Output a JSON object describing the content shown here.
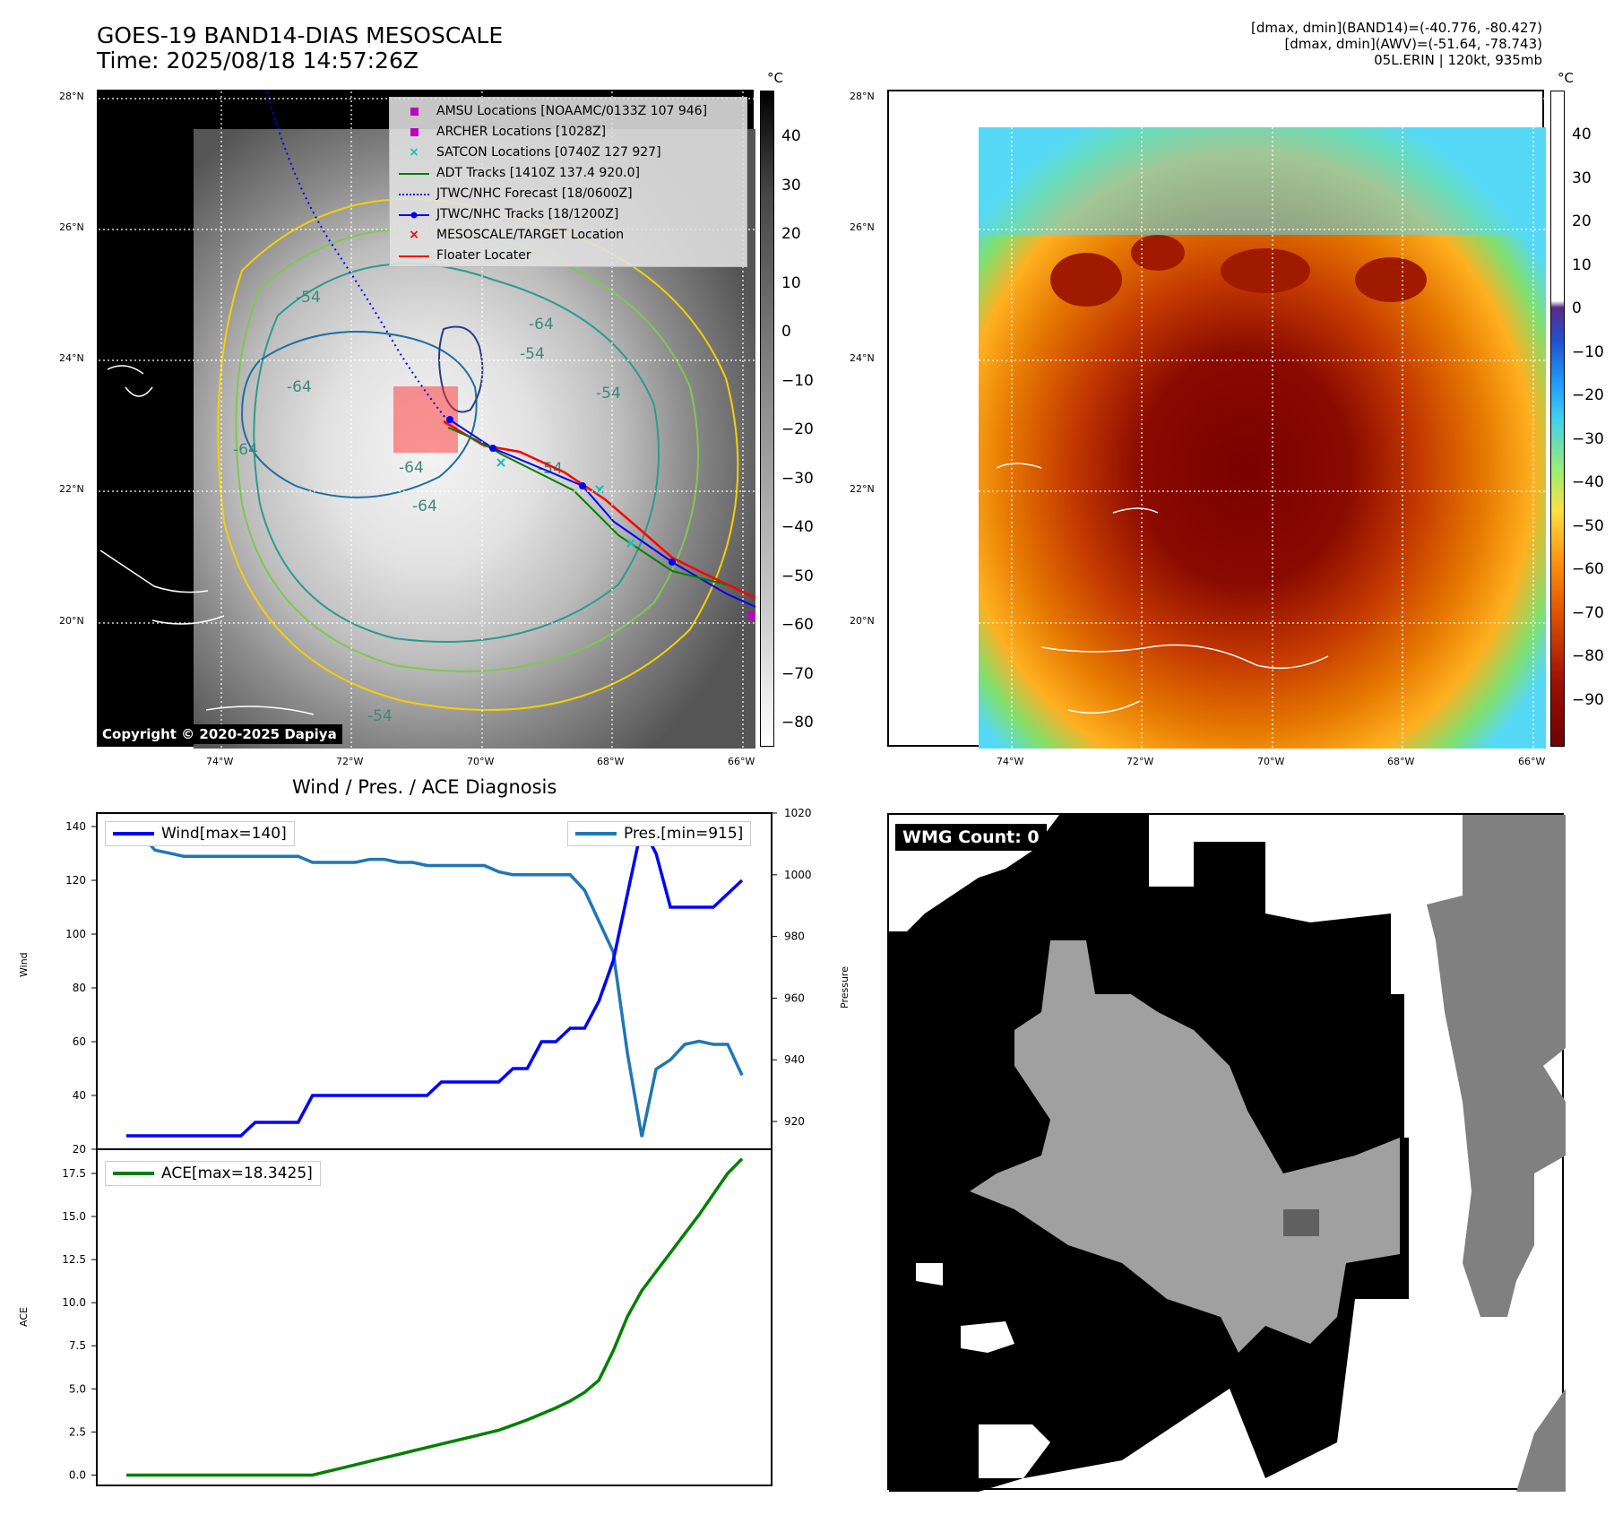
{
  "header": {
    "title_line1": "GOES-19 BAND14-DIAS MESOSCALE",
    "title_line2": "Time: 2025/08/18 14:57:26Z",
    "right_line1": "[dmax, dmin](BAND14)=(-40.776, -80.427)",
    "right_line2": "[dmax, dmin](AWV)=(-51.64, -78.743)",
    "right_line3": "05L.ERIN | 120kt, 935mb"
  },
  "map_left": {
    "lat_labels": [
      "28°N",
      "26°N",
      "24°N",
      "22°N",
      "20°N"
    ],
    "lon_labels": [
      "74°W",
      "72°W",
      "70°W",
      "68°W",
      "66°W"
    ],
    "copyright": "Copyright © 2020-2025 Dapiya",
    "contour_labels": [
      "-64",
      "-54",
      "-64",
      "-54",
      "-64",
      "-54",
      "-64",
      "-54",
      "-54",
      "-64"
    ],
    "legend": [
      {
        "label": "AMSU Locations [NOAAMC/0133Z 107 946]",
        "color": "#c000c0"
      },
      {
        "label": "ARCHER Locations [1028Z]",
        "color": "#c000c0"
      },
      {
        "label": "SATCON Locations [0740Z 127 927]",
        "color": "#17bfbf"
      },
      {
        "label": "ADT Tracks [1410Z 137.4 920.0]",
        "color": "#008000"
      },
      {
        "label": "JTWC/NHC Forecast [18/0600Z]",
        "color": "#0000ff"
      },
      {
        "label": "JTWC/NHC Tracks [18/1200Z]",
        "color": "#0000ff"
      },
      {
        "label": "MESOSCALE/TARGET Location",
        "color": "#ff0000"
      },
      {
        "label": "Floater Locater",
        "color": "#ff0000"
      }
    ],
    "cbar_unit": "°C",
    "cbar_ticks": [
      "40",
      "30",
      "20",
      "10",
      "0",
      "−10",
      "−20",
      "−30",
      "−40",
      "−50",
      "−60",
      "−70",
      "−80"
    ]
  },
  "map_right": {
    "lat_labels": [
      "26°N",
      "24°N",
      "22°N",
      "20°N",
      "28°N"
    ],
    "lon_labels": [
      "74°W",
      "72°W",
      "70°W",
      "68°W",
      "66°W"
    ],
    "cbar_unit": "°C",
    "cbar_ticks": [
      "40",
      "30",
      "20",
      "10",
      "0",
      "−10",
      "−20",
      "−30",
      "−40",
      "−50",
      "−60",
      "−70",
      "−80",
      "−90"
    ]
  },
  "diag": {
    "title": "Wind / Pres. / ACE Diagnosis",
    "wind_legend": "Wind[max=140]",
    "pres_legend": "Pres.[min=915]",
    "ace_legend": "ACE[max=18.3425]",
    "wind_ylabel": "Wind",
    "pres_ylabel": "Pressure",
    "ace_ylabel": "ACE"
  },
  "wmg": {
    "label": "WMG Count: 0"
  },
  "chart_data": [
    {
      "type": "line",
      "title": "Wind / Pres. / ACE Diagnosis",
      "ylabel": "Wind",
      "ylim": [
        20,
        145
      ],
      "yticks": [
        20,
        40,
        60,
        80,
        100,
        120,
        140
      ],
      "series": [
        {
          "name": "Wind[max=140]",
          "color": "#0000ff",
          "values": [
            25,
            25,
            25,
            25,
            25,
            25,
            25,
            25,
            25,
            30,
            30,
            30,
            30,
            40,
            40,
            40,
            40,
            40,
            40,
            40,
            40,
            40,
            45,
            45,
            45,
            45,
            45,
            50,
            50,
            60,
            60,
            65,
            65,
            75,
            90,
            115,
            140,
            130,
            110,
            110,
            110,
            110,
            115,
            120
          ]
        }
      ]
    },
    {
      "type": "line",
      "ylabel": "Pressure",
      "ylim": [
        911,
        1020
      ],
      "yticks": [
        920,
        940,
        960,
        980,
        1000,
        1020
      ],
      "series": [
        {
          "name": "Pres.[min=915]",
          "color": "#1f77b4",
          "values": [
            1013,
            1013,
            1008,
            1007,
            1006,
            1006,
            1006,
            1006,
            1006,
            1006,
            1006,
            1006,
            1006,
            1004,
            1004,
            1004,
            1004,
            1005,
            1005,
            1004,
            1004,
            1003,
            1003,
            1003,
            1003,
            1003,
            1001,
            1000,
            1000,
            1000,
            1000,
            1000,
            995,
            985,
            975,
            942,
            915,
            937,
            940,
            945,
            946,
            945,
            945,
            935
          ]
        }
      ]
    },
    {
      "type": "line",
      "ylabel": "ACE",
      "ylim": [
        -0.6,
        18.9
      ],
      "yticks": [
        0.0,
        2.5,
        5.0,
        7.5,
        10.0,
        12.5,
        15.0,
        17.5
      ],
      "series": [
        {
          "name": "ACE[max=18.3425]",
          "color": "#008000",
          "values": [
            0,
            0,
            0,
            0,
            0,
            0,
            0,
            0,
            0,
            0,
            0,
            0,
            0,
            0,
            0.2,
            0.4,
            0.6,
            0.8,
            1.0,
            1.2,
            1.4,
            1.6,
            1.8,
            2.0,
            2.2,
            2.4,
            2.6,
            2.9,
            3.2,
            3.55,
            3.9,
            4.3,
            4.8,
            5.5,
            7.2,
            9.2,
            10.7,
            11.8,
            12.9,
            14.0,
            15.1,
            16.3,
            17.5,
            18.3425
          ]
        }
      ]
    }
  ]
}
